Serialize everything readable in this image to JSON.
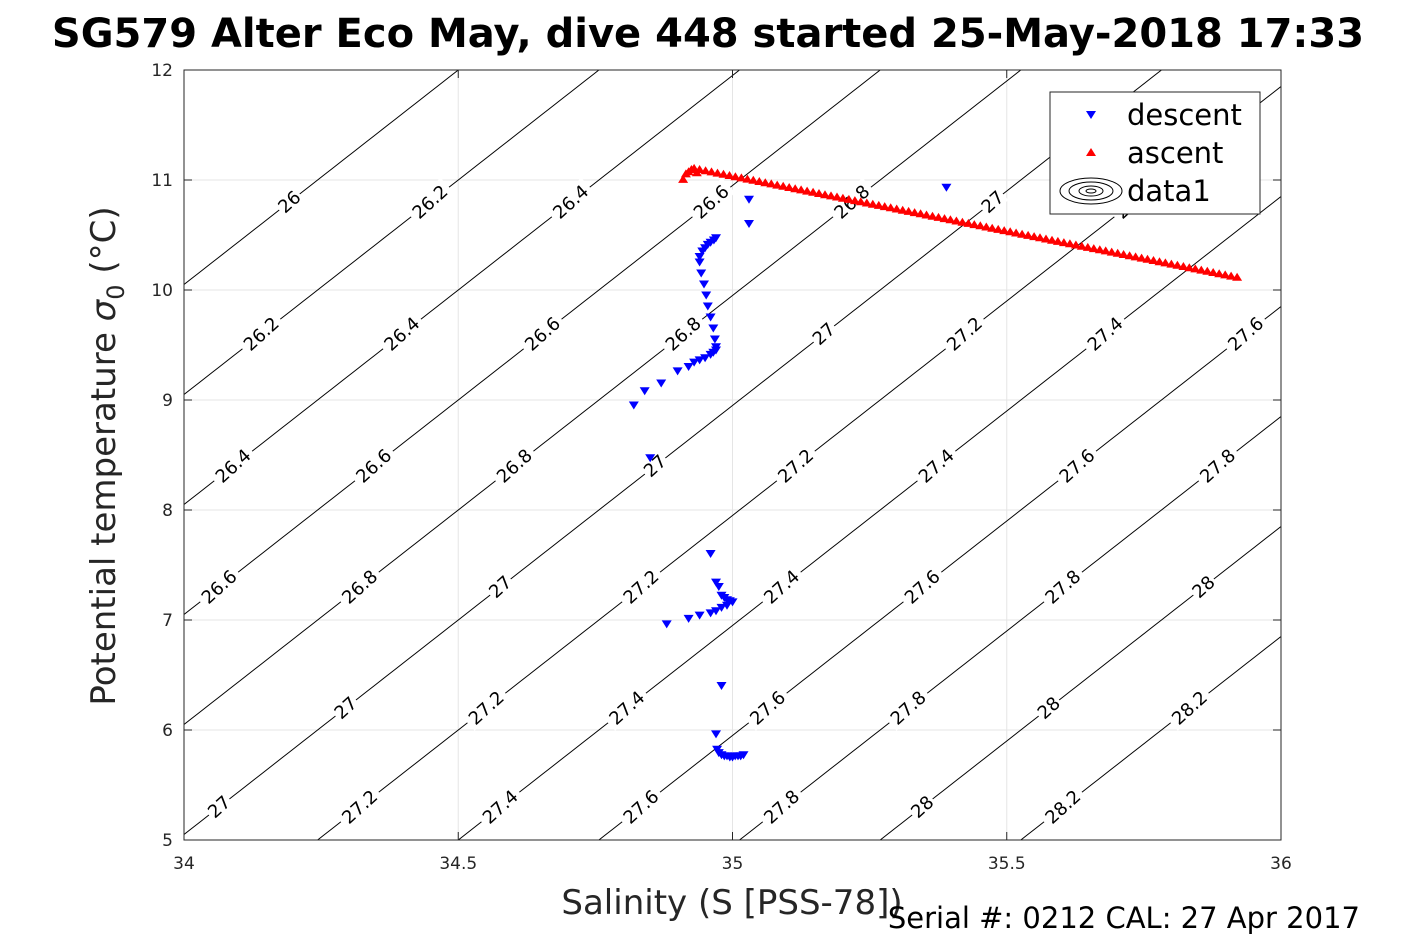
{
  "title": "SG579 Alter Eco May, dive 448 started 25-May-2018 17:33",
  "footer": "Serial #: 0212  CAL: 27 Apr 2017",
  "chart_data": {
    "type": "scatter",
    "xlabel": "Salinity (S [PSS-78])",
    "ylabel_main": "Potential temperature ",
    "ylabel_sigma": "σ",
    "ylabel_sub": "0",
    "ylabel_unit": " (°C)",
    "xlim": [
      34,
      36
    ],
    "ylim": [
      5,
      12
    ],
    "xticks": [
      34,
      34.5,
      35,
      35.5,
      36
    ],
    "xtick_labels": [
      "34",
      "34.5",
      "35",
      "35.5",
      "36"
    ],
    "yticks": [
      5,
      6,
      7,
      8,
      9,
      10,
      11,
      12
    ],
    "ytick_labels": [
      "5",
      "6",
      "7",
      "8",
      "9",
      "10",
      "11",
      "12"
    ],
    "grid": true,
    "legend_position": "top-right",
    "series": [
      {
        "name": "descent",
        "marker": "triangle-down",
        "color": "#0000ff",
        "x": [
          35.39,
          35.03,
          35.03,
          34.97,
          34.966,
          34.96,
          34.955,
          34.95,
          34.945,
          34.94,
          34.94,
          34.943,
          34.948,
          34.952,
          34.955,
          34.96,
          34.965,
          34.968,
          34.97,
          34.97,
          34.965,
          34.96,
          34.95,
          34.94,
          34.93,
          34.92,
          34.9,
          34.87,
          34.84,
          34.82,
          34.85,
          34.96,
          34.97,
          34.975,
          34.98,
          34.985,
          34.99,
          34.995,
          35.0,
          34.99,
          34.98,
          34.97,
          34.96,
          34.94,
          34.92,
          34.88,
          34.98,
          34.97,
          34.972,
          34.975,
          34.98,
          34.985,
          34.99,
          34.995,
          35.0,
          35.005,
          35.01,
          35.015,
          35.02
        ],
        "y": [
          10.93,
          10.82,
          10.6,
          10.47,
          10.45,
          10.43,
          10.41,
          10.38,
          10.35,
          10.3,
          10.25,
          10.15,
          10.05,
          9.95,
          9.85,
          9.75,
          9.65,
          9.55,
          9.48,
          9.45,
          9.43,
          9.41,
          9.38,
          9.36,
          9.34,
          9.3,
          9.26,
          9.15,
          9.08,
          8.95,
          8.47,
          7.6,
          7.34,
          7.3,
          7.22,
          7.2,
          7.18,
          7.17,
          7.16,
          7.13,
          7.11,
          7.08,
          7.06,
          7.04,
          7.01,
          6.96,
          6.4,
          5.96,
          5.82,
          5.79,
          5.77,
          5.76,
          5.76,
          5.75,
          5.75,
          5.76,
          5.76,
          5.76,
          5.77
        ]
      },
      {
        "name": "ascent",
        "marker": "triangle-up",
        "color": "#ff0000",
        "x_start": 34.94,
        "y_start": 11.1,
        "x_end": 35.92,
        "y_end": 10.12,
        "extra_x": [
          34.91,
          34.915,
          34.92,
          34.925,
          34.93,
          34.935
        ],
        "extra_y": [
          11.01,
          11.06,
          11.08,
          11.1,
          11.11,
          11.07
        ]
      },
      {
        "name": "data1",
        "marker": "contour"
      }
    ],
    "density_contours": [
      {
        "level": 26.0,
        "label": "26"
      },
      {
        "level": 26.2,
        "label": "26.2"
      },
      {
        "level": 26.4,
        "label": "26.4"
      },
      {
        "level": 26.6,
        "label": "26.6"
      },
      {
        "level": 26.8,
        "label": "26.8"
      },
      {
        "level": 27.0,
        "label": "27"
      },
      {
        "level": 27.2,
        "label": "27.2"
      },
      {
        "level": 27.4,
        "label": "27.4"
      },
      {
        "level": 27.6,
        "label": "27.6"
      },
      {
        "level": 27.8,
        "label": "27.8"
      },
      {
        "level": 28.0,
        "label": "28"
      },
      {
        "level": 28.2,
        "label": "28.2"
      }
    ]
  },
  "colors": {
    "descent": "#0000ff",
    "ascent": "#ff0000",
    "contour": "#000000",
    "grid": "#e5e5e5"
  }
}
